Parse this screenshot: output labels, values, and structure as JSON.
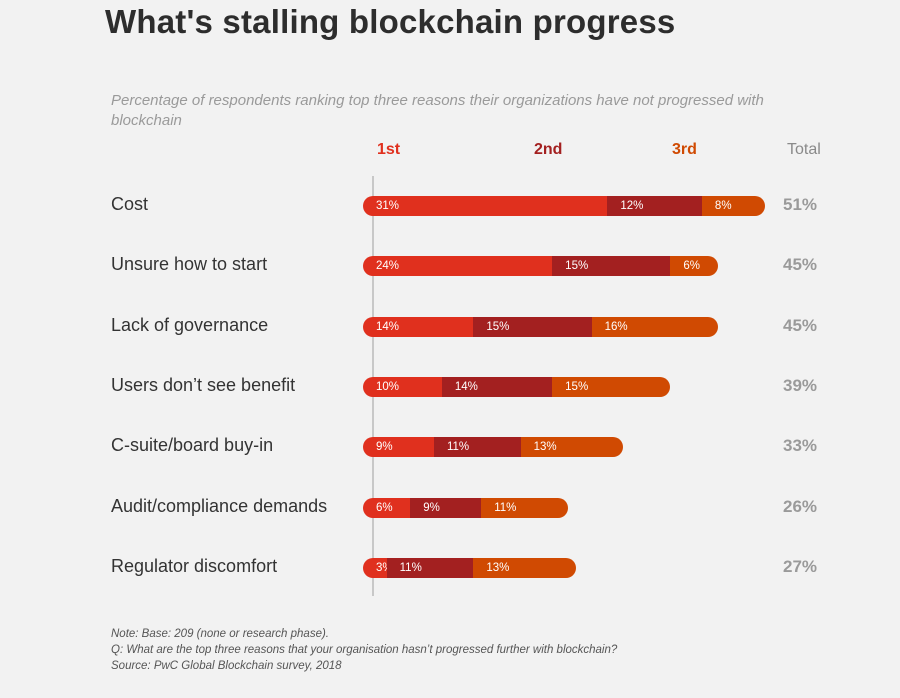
{
  "title": "What's stalling blockchain progress",
  "subtitle": "Percentage of respondents ranking top three reasons their organizations have not progressed with blockchain",
  "headers": {
    "first": "1st",
    "second": "2nd",
    "third": "3rd",
    "total": "Total"
  },
  "colors": {
    "first": "#e0301e",
    "second": "#a32020",
    "third": "#d04a02"
  },
  "chart_data": {
    "type": "bar",
    "orientation": "horizontal",
    "stacked": true,
    "title": "What's stalling blockchain progress",
    "subtitle": "Percentage of respondents ranking top three reasons their organizations have not progressed with blockchain",
    "categories": [
      "Cost",
      "Unsure how to start",
      "Lack of governance",
      "Users don’t see benefit",
      "C-suite/board buy-in",
      "Audit/compliance demands",
      "Regulator discomfort"
    ],
    "series": [
      {
        "name": "1st",
        "values": [
          31,
          24,
          14,
          10,
          9,
          6,
          3
        ]
      },
      {
        "name": "2nd",
        "values": [
          12,
          15,
          15,
          14,
          11,
          9,
          11
        ]
      },
      {
        "name": "3rd",
        "values": [
          8,
          6,
          16,
          15,
          13,
          11,
          13
        ]
      }
    ],
    "totals": [
      "51%",
      "45%",
      "45%",
      "39%",
      "33%",
      "26%",
      "27%"
    ],
    "legend": "top"
  },
  "notes": [
    "Note: Base: 209 (none or research phase).",
    "Q: What are the top three reasons that your organisation hasn’t progressed further with blockchain?",
    "Source: PwC Global Blockchain survey, 2018"
  ]
}
